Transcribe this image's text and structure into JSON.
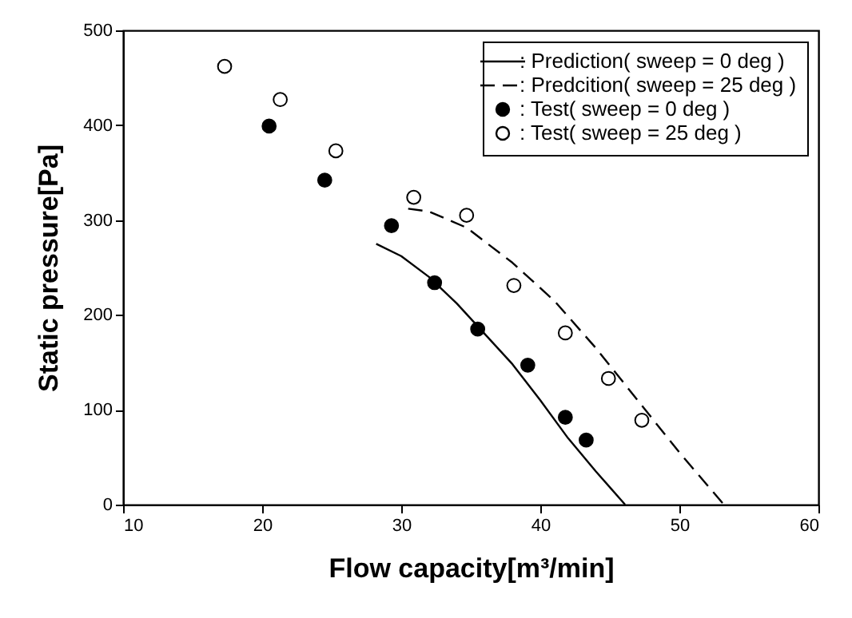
{
  "chart_data": {
    "type": "line",
    "xlabel": "Flow capacity[m³/min]",
    "ylabel": "Static pressure[Pa]",
    "xlim": [
      10,
      60
    ],
    "xticks": [
      10,
      20,
      30,
      40,
      50,
      60
    ],
    "ylim": [
      0,
      500
    ],
    "yticks": [
      0,
      100,
      200,
      300,
      400,
      500
    ],
    "grid": false,
    "legend": "top right",
    "series": [
      {
        "name": ": Prediction( sweep = 0 deg )",
        "line_style": "solid",
        "color": "#000000",
        "x": [
          28.2,
          30,
          32,
          34,
          36,
          38,
          40,
          42,
          44,
          46.1
        ],
        "values": [
          275,
          262,
          240,
          212,
          180,
          148,
          110,
          70,
          35,
          0
        ]
      },
      {
        "name": ": Predcition( sweep = 25 deg )",
        "line_style": "dashed",
        "color": "#000000",
        "x": [
          30.5,
          32,
          34.7,
          38,
          41,
          44,
          47,
          50,
          53.2
        ],
        "values": [
          312,
          309,
          292,
          255,
          215,
          165,
          110,
          55,
          0
        ]
      },
      {
        "name": ": Test( sweep = 0 deg )",
        "type": "scatter",
        "marker": "circle",
        "color": "#000000",
        "x": [
          20.5,
          24.5,
          29.3,
          32.4,
          35.5,
          39.1,
          41.8,
          43.3
        ],
        "values": [
          399,
          342,
          294,
          234,
          185,
          147,
          92,
          68
        ]
      },
      {
        "name": ": Test( sweep = 25 deg )",
        "type": "scatter",
        "marker": "circle",
        "color": "#ffffff",
        "x": [
          17.3,
          21.3,
          25.3,
          30.9,
          34.7,
          38.1,
          41.8,
          44.9,
          47.3
        ],
        "values": [
          462,
          427,
          373,
          324,
          305,
          231,
          181,
          133,
          89
        ]
      }
    ]
  }
}
